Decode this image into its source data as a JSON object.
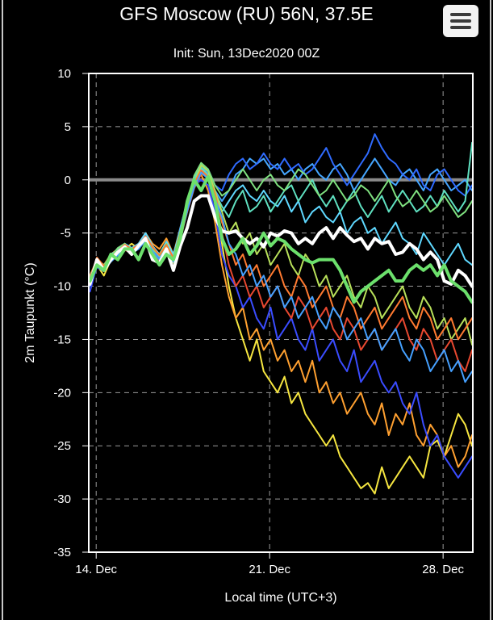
{
  "header": {
    "title": "GFS Moscow (RU) 56N, 37.5E",
    "subtitle": "Init: Sun, 13Dec2020 00Z",
    "menu_icon": "hamburger-menu-icon"
  },
  "chart_data": {
    "type": "line",
    "xlabel": "Local time (UTC+3)",
    "ylabel": "2m Taupunkt (°C)",
    "ylim": [
      -35,
      10
    ],
    "xlim": [
      13.7,
      29.2
    ],
    "yticks": [
      10,
      5,
      0,
      -5,
      -10,
      -15,
      -20,
      -25,
      -30,
      -35
    ],
    "xticks": [
      {
        "value": 14,
        "label": "14. Dec"
      },
      {
        "value": 21,
        "label": "21. Dec"
      },
      {
        "value": 28,
        "label": "28. Dec"
      }
    ],
    "grid": true,
    "reference_line": {
      "y": 0,
      "color": "#8a8a8a"
    },
    "palette": [
      "#2f6bff",
      "#45a0ff",
      "#5fd2ff",
      "#5fe0c0",
      "#7fe07f",
      "#b8e05a",
      "#f0e040",
      "#ffb030",
      "#ff7a30",
      "#e84830",
      "#3040ff"
    ],
    "series": [
      {
        "color": "#ffffff",
        "width": 4,
        "values": [
          -9.8,
          -7.5,
          -8.5,
          -7.5,
          -6.8,
          -6.3,
          -7,
          -6.2,
          -5.5,
          -7.5,
          -7.8,
          -6.5,
          -8.5,
          -6.2,
          -4.5,
          -2,
          -1.5,
          -1.5,
          -3.5,
          -4.8,
          -5,
          -4.8,
          -5.5,
          -6,
          -5.5,
          -6.3,
          -5,
          -5.3,
          -4.8,
          -5,
          -6,
          -5.5,
          -6,
          -5,
          -4.5,
          -5.5,
          -4.5,
          -5.2,
          -5.8,
          -5.5,
          -6.5,
          -5.5,
          -6,
          -5.8,
          -7,
          -6.8,
          -6,
          -6.5,
          -7.5,
          -6.8,
          -7.5,
          -9.5,
          -9.8,
          -8.5,
          -9,
          -10
        ]
      },
      {
        "color": "#6ce06c",
        "width": 4,
        "values": [
          -9.5,
          -8,
          -8.5,
          -7,
          -7.5,
          -6.5,
          -6.5,
          -7.5,
          -6,
          -7,
          -8,
          -7,
          -7.5,
          -5.5,
          -2,
          0,
          -1,
          0.3,
          -2,
          -5.5,
          -7,
          -6.5,
          -5.5,
          -7,
          -6.2,
          -5,
          -6.2,
          -5.5,
          -5.8,
          -6.5,
          -7,
          -7.5,
          -7.8,
          -7.5,
          -7.5,
          -7.5,
          -8.5,
          -10,
          -11.5,
          -10.5,
          -10,
          -9.5,
          -9,
          -8.5,
          -9.5,
          -9.5,
          -8.5,
          -8,
          -8.5,
          -8,
          -9,
          -8,
          -9.5,
          -10,
          -10.5,
          -11.5
        ]
      },
      {
        "color": "#f6e640",
        "width": 2,
        "values": [
          -10,
          -8,
          -9,
          -7.5,
          -7,
          -6.5,
          -6,
          -6.5,
          -5.5,
          -6.5,
          -7,
          -6,
          -7.5,
          -5,
          -3,
          0,
          1,
          0.5,
          -2,
          -6,
          -10,
          -13,
          -15,
          -17,
          -15,
          -18,
          -19,
          -20,
          -18.5,
          -21,
          -20,
          -22,
          -23,
          -24,
          -25,
          -24,
          -26,
          -27,
          -28,
          -29,
          -28.5,
          -29.5,
          -27,
          -29,
          -28,
          -27,
          -26,
          -27,
          -28,
          -25,
          -24.5,
          -26,
          -24,
          -22,
          -23,
          -25
        ]
      },
      {
        "color": "#ffa030",
        "width": 2,
        "values": [
          -9,
          -7.5,
          -8,
          -7,
          -6.5,
          -6,
          -6.5,
          -6,
          -5,
          -6,
          -6.5,
          -5.5,
          -7,
          -4.5,
          -2,
          -0.5,
          0.5,
          -1,
          -4,
          -8,
          -11,
          -13,
          -12,
          -15,
          -14,
          -16,
          -15,
          -17,
          -16,
          -18,
          -17,
          -19,
          -17,
          -20,
          -19,
          -21,
          -20,
          -22,
          -21,
          -20,
          -22,
          -23,
          -21,
          -24,
          -22,
          -23,
          -21,
          -24,
          -25,
          -23,
          -24,
          -26,
          -25,
          -27,
          -26,
          -24
        ]
      },
      {
        "color": "#3a4cff",
        "width": 2,
        "values": [
          -10.5,
          -8,
          -8.5,
          -7.5,
          -7,
          -6,
          -6.5,
          -6,
          -5.5,
          -6.5,
          -7,
          -6,
          -7,
          -5.5,
          -2.5,
          -0.5,
          0,
          -0.5,
          -3,
          -7,
          -9,
          -10,
          -12,
          -11,
          -13,
          -14,
          -12,
          -15,
          -14,
          -13,
          -15,
          -16,
          -14,
          -17,
          -16,
          -15,
          -17,
          -18,
          -16,
          -19,
          -18,
          -17,
          -19,
          -20,
          -19,
          -21,
          -22,
          -20,
          -23,
          -25,
          -24,
          -26,
          -27,
          -28,
          -27,
          -26
        ]
      },
      {
        "color": "#45a6ff",
        "width": 2,
        "values": [
          -9.5,
          -7.8,
          -8,
          -7.2,
          -6.8,
          -6.2,
          -6.8,
          -6.4,
          -5.2,
          -6.8,
          -7.2,
          -6,
          -7.2,
          -4.5,
          -2,
          0,
          1.5,
          0.5,
          -1,
          -2,
          -1,
          0.5,
          1,
          2,
          1.5,
          2,
          1,
          1.5,
          0.5,
          1,
          0,
          1,
          1.5,
          0.5,
          0,
          1,
          1.5,
          0.5,
          -1,
          0,
          1,
          2,
          1,
          0,
          -0.5,
          0.5,
          1,
          0,
          -1,
          0.5,
          1,
          0,
          -1,
          -0.5,
          0,
          -1
        ]
      },
      {
        "color": "#2f6bff",
        "width": 2,
        "values": [
          -10,
          -8.2,
          -8.6,
          -7.6,
          -6.8,
          -6.4,
          -6.6,
          -6.2,
          -5.6,
          -6.6,
          -7.4,
          -6.4,
          -7.6,
          -5.2,
          -2.5,
          -0.5,
          1.5,
          1,
          -0.5,
          -1,
          0.5,
          1.5,
          2,
          1,
          1.5,
          2.5,
          1.5,
          1,
          2,
          1,
          1.5,
          0.5,
          1,
          2,
          3,
          1.5,
          0.5,
          -0.5,
          0.5,
          1.5,
          2.5,
          4.3,
          3,
          2,
          1.5,
          0.5,
          0,
          1,
          -0.5,
          -1,
          0.5,
          1,
          0,
          -1,
          -1.5,
          -0.5
        ]
      },
      {
        "color": "#5fd8ff",
        "width": 2,
        "values": [
          -9.2,
          -7.4,
          -8.2,
          -7,
          -6.6,
          -6,
          -6.4,
          -6,
          -5,
          -6.2,
          -7,
          -5.8,
          -7,
          -4.8,
          -2.2,
          -0.2,
          1,
          0.2,
          -1.5,
          -3,
          -2,
          -1,
          -0.5,
          -1.5,
          -2,
          -1,
          -2,
          -2.5,
          -1.5,
          -3,
          -2,
          -4,
          -3,
          -2.5,
          -3.5,
          -4,
          -3,
          -5,
          -4,
          -3.5,
          -5,
          -4.5,
          -6,
          -5,
          -4,
          -5.5,
          -6,
          -7,
          -5,
          -6,
          -7,
          -8,
          -7,
          -6,
          -7.5,
          -8
        ]
      },
      {
        "color": "#5fe0c0",
        "width": 2,
        "values": [
          -9.6,
          -7.6,
          -8.4,
          -7.4,
          -6.6,
          -6.2,
          -6.8,
          -6.2,
          -5.4,
          -6.4,
          -7.2,
          -6.2,
          -7.4,
          -5,
          -2.4,
          0.2,
          1.2,
          0.4,
          -1.2,
          -2.5,
          -3.5,
          -2,
          -1,
          -3,
          -2.5,
          -1.5,
          -3,
          -2,
          -1,
          -0.5,
          -2,
          -1,
          0,
          -1.5,
          -2.5,
          -1.5,
          -3,
          -2,
          -1,
          -2.5,
          -3.5,
          -2.5,
          -1.5,
          -3,
          -2,
          -1,
          -2,
          -3,
          -2.5,
          -1.5,
          -2.5,
          -1,
          -2,
          -3,
          -2,
          3.5
        ]
      },
      {
        "color": "#b8e05a",
        "width": 2,
        "values": [
          -9.8,
          -7.8,
          -8.2,
          -7.4,
          -6.8,
          -6.4,
          -6.6,
          -6.4,
          -5.6,
          -6.8,
          -7.6,
          -6.4,
          -7.8,
          -5.4,
          -2.8,
          -0.4,
          1.4,
          0.8,
          -1,
          -3,
          -5,
          -4,
          -6,
          -5,
          -7,
          -6,
          -8,
          -7,
          -6,
          -8,
          -9,
          -7,
          -8,
          -10,
          -9,
          -11,
          -10,
          -9,
          -11,
          -12,
          -10,
          -11,
          -13,
          -12,
          -11,
          -10,
          -12,
          -13,
          -11,
          -12,
          -14,
          -13,
          -15,
          -14,
          -13,
          -15.5
        ]
      },
      {
        "color": "#7fe07f",
        "width": 2,
        "values": [
          -9.4,
          -7.6,
          -8,
          -7.2,
          -6.4,
          -6,
          -6.8,
          -6.2,
          -5.4,
          -6.6,
          -7,
          -6,
          -7.4,
          -4.8,
          -2.2,
          0.4,
          1.6,
          1,
          -0.5,
          -1.5,
          -1,
          0,
          1,
          0,
          -1,
          0,
          0.5,
          -0.5,
          -1,
          0,
          1,
          0.5,
          -0.5,
          -1.5,
          -1,
          0,
          -1,
          -2,
          -1.5,
          -0.5,
          -1,
          -2,
          -1,
          0,
          -1.5,
          -2.5,
          -2,
          -1,
          -2,
          -3,
          -2.5,
          -1.5,
          -2.5,
          -3.5,
          -3,
          -2
        ]
      },
      {
        "color": "#e84830",
        "width": 2,
        "values": [
          -9.6,
          -7.8,
          -8.4,
          -7.6,
          -7,
          -6.6,
          -6.8,
          -6.4,
          -5.8,
          -6.8,
          -7.6,
          -6.6,
          -7.6,
          -5.6,
          -3,
          -0.8,
          0.6,
          0.2,
          -2,
          -5,
          -8,
          -10,
          -9,
          -11,
          -10,
          -12,
          -11,
          -10,
          -12,
          -13,
          -11,
          -12,
          -14,
          -13,
          -12,
          -14,
          -15,
          -13,
          -14,
          -16,
          -15,
          -14,
          -16,
          -15,
          -14,
          -13,
          -15,
          -16,
          -14,
          -15,
          -17,
          -16,
          -15,
          -17,
          -18,
          -16
        ]
      },
      {
        "color": "#ff7a30",
        "width": 2,
        "values": [
          -9.3,
          -7.3,
          -8.1,
          -7.3,
          -6.7,
          -6.1,
          -6.5,
          -6.1,
          -5.3,
          -6.3,
          -7.1,
          -6.1,
          -7.3,
          -5.1,
          -2.3,
          -0.3,
          0.9,
          0.3,
          -1.3,
          -4,
          -6,
          -8,
          -7,
          -9,
          -8,
          -10,
          -9,
          -8,
          -10,
          -11,
          -9,
          -10,
          -12,
          -11,
          -10,
          -12,
          -13,
          -11,
          -12,
          -14,
          -13,
          -12,
          -14,
          -13,
          -12,
          -11,
          -13,
          -14,
          -12,
          -13,
          -15,
          -14,
          -13,
          -15,
          -14,
          -13
        ]
      },
      {
        "color": "#45a0ff",
        "width": 2,
        "values": [
          -9.9,
          -7.9,
          -8.5,
          -7.7,
          -7.1,
          -6.5,
          -6.9,
          -6.5,
          -5.7,
          -6.7,
          -7.5,
          -6.5,
          -7.7,
          -5.5,
          -2.9,
          -0.7,
          0.7,
          0.1,
          -1.8,
          -3.5,
          -6,
          -7,
          -9,
          -8,
          -10,
          -9,
          -11,
          -10,
          -12,
          -11,
          -13,
          -12,
          -11,
          -13,
          -14,
          -12,
          -13,
          -15,
          -14,
          -13,
          -15,
          -14,
          -16,
          -15,
          -14,
          -16,
          -17,
          -15,
          -16,
          -18,
          -17,
          -16,
          -18,
          -17,
          -19,
          -18
        ]
      }
    ]
  }
}
